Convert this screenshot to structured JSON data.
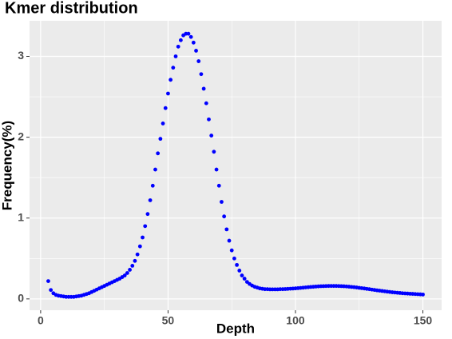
{
  "chart_data": {
    "type": "scatter",
    "title": "Kmer distribution",
    "x_label": "Depth",
    "y_label": "Frequency(%)",
    "color": "#0000ff",
    "x": [
      3,
      4,
      5,
      6,
      7,
      8,
      9,
      10,
      11,
      12,
      13,
      14,
      15,
      16,
      17,
      18,
      19,
      20,
      21,
      22,
      23,
      24,
      25,
      26,
      27,
      28,
      29,
      30,
      31,
      32,
      33,
      34,
      35,
      36,
      37,
      38,
      39,
      40,
      41,
      42,
      43,
      44,
      45,
      46,
      47,
      48,
      49,
      50,
      51,
      52,
      53,
      54,
      55,
      56,
      57,
      58,
      59,
      60,
      61,
      62,
      63,
      64,
      65,
      66,
      67,
      68,
      69,
      70,
      71,
      72,
      73,
      74,
      75,
      76,
      77,
      78,
      79,
      80,
      81,
      82,
      83,
      84,
      85,
      86,
      87,
      88,
      89,
      90,
      91,
      92,
      93,
      94,
      95,
      96,
      97,
      98,
      99,
      100,
      101,
      102,
      103,
      104,
      105,
      106,
      107,
      108,
      109,
      110,
      111,
      112,
      113,
      114,
      115,
      116,
      117,
      118,
      119,
      120,
      121,
      122,
      123,
      124,
      125,
      126,
      127,
      128,
      129,
      130,
      131,
      132,
      133,
      134,
      135,
      136,
      137,
      138,
      139,
      140,
      141,
      142,
      143,
      144,
      145,
      146,
      147,
      148,
      149,
      150
    ],
    "values": [
      0.22,
      0.11,
      0.07,
      0.05,
      0.04,
      0.035,
      0.03,
      0.025,
      0.025,
      0.025,
      0.025,
      0.03,
      0.035,
      0.04,
      0.05,
      0.06,
      0.07,
      0.085,
      0.1,
      0.115,
      0.13,
      0.145,
      0.16,
      0.175,
      0.19,
      0.205,
      0.22,
      0.235,
      0.25,
      0.27,
      0.29,
      0.32,
      0.36,
      0.41,
      0.47,
      0.55,
      0.65,
      0.76,
      0.9,
      1.05,
      1.22,
      1.4,
      1.6,
      1.8,
      1.98,
      2.17,
      2.36,
      2.54,
      2.71,
      2.86,
      3.0,
      3.12,
      3.2,
      3.26,
      3.28,
      3.28,
      3.24,
      3.17,
      3.07,
      2.94,
      2.78,
      2.6,
      2.42,
      2.22,
      2.02,
      1.82,
      1.6,
      1.4,
      1.2,
      1.02,
      0.86,
      0.72,
      0.6,
      0.5,
      0.42,
      0.35,
      0.29,
      0.25,
      0.21,
      0.185,
      0.165,
      0.15,
      0.14,
      0.13,
      0.125,
      0.12,
      0.12,
      0.118,
      0.118,
      0.118,
      0.118,
      0.12,
      0.12,
      0.122,
      0.124,
      0.126,
      0.128,
      0.13,
      0.133,
      0.136,
      0.139,
      0.142,
      0.145,
      0.148,
      0.15,
      0.153,
      0.155,
      0.157,
      0.158,
      0.159,
      0.16,
      0.16,
      0.16,
      0.16,
      0.159,
      0.158,
      0.156,
      0.154,
      0.151,
      0.148,
      0.145,
      0.141,
      0.137,
      0.133,
      0.129,
      0.124,
      0.12,
      0.115,
      0.111,
      0.106,
      0.102,
      0.098,
      0.094,
      0.09,
      0.086,
      0.082,
      0.079,
      0.076,
      0.073,
      0.07,
      0.068,
      0.066,
      0.064,
      0.062,
      0.06,
      0.058,
      0.056,
      0.054
    ],
    "xlim": [
      -4.35,
      157.35
    ],
    "xticks": [
      0,
      50,
      100,
      150
    ],
    "ylim": [
      -0.14,
      3.44
    ],
    "yticks": [
      0,
      1,
      2,
      3
    ],
    "grid": true
  }
}
